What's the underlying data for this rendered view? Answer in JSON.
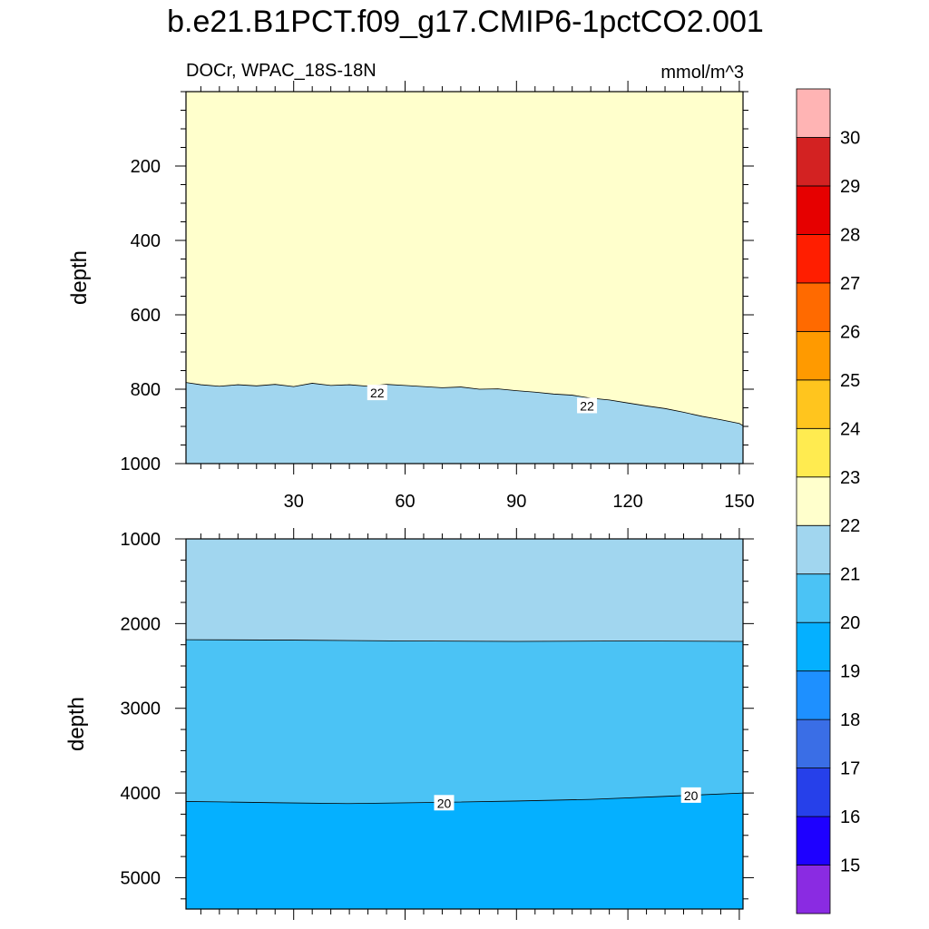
{
  "title": "b.e21.B1PCT.f09_g17.CMIP6-1pctCO2.001",
  "chart_data": {
    "type": "contour",
    "variable": "DOCr, WPAC_18S-18N",
    "units": "mmol/m^3",
    "x": {
      "range": [
        1,
        151
      ],
      "ticks": [
        30,
        60,
        90,
        120,
        150
      ],
      "ticklabels": [
        "30",
        "60",
        "90",
        "120",
        "150"
      ]
    },
    "colorbar": {
      "levels": [
        15,
        16,
        17,
        18,
        19,
        20,
        21,
        22,
        23,
        24,
        25,
        26,
        27,
        28,
        29,
        30
      ],
      "level_labels": [
        "15",
        "16",
        "17",
        "18",
        "19",
        "20",
        "21",
        "22",
        "23",
        "24",
        "25",
        "26",
        "27",
        "28",
        "29",
        "30"
      ],
      "colors": [
        "#8a2be2",
        "#1e00ff",
        "#2640ea",
        "#3a6ee6",
        "#1e90ff",
        "#05b0ff",
        "#4bc3f5",
        "#a1d6ef",
        "#ffffcc",
        "#ffeb50",
        "#ffc51e",
        "#ff9a00",
        "#ff6a00",
        "#ff1e00",
        "#e60000",
        "#d32222",
        "#ffb4b4"
      ]
    },
    "panels": [
      {
        "name": "upper",
        "ylabel": "depth",
        "ylim": [
          1000,
          0
        ],
        "yticks": [
          200,
          400,
          600,
          800,
          1000
        ],
        "yticklabels": [
          "200",
          "400",
          "600",
          "800",
          "1000"
        ],
        "regions": [
          {
            "level_range": "22-23",
            "color": "#ffffcc"
          },
          {
            "level_range": "21-22",
            "color": "#a1d6ef"
          }
        ],
        "contours": [
          {
            "level": 22,
            "x": [
              1,
              5,
              10,
              15,
              20,
              25,
              30,
              35,
              40,
              45,
              50,
              55,
              60,
              65,
              70,
              75,
              80,
              85,
              90,
              95,
              100,
              105,
              110,
              115,
              120,
              125,
              130,
              135,
              140,
              145,
              150,
              151
            ],
            "depth": [
              782,
              788,
              792,
              788,
              791,
              787,
              793,
              784,
              790,
              788,
              792,
              787,
              790,
              793,
              796,
              794,
              800,
              799,
              804,
              808,
              813,
              816,
              824,
              829,
              837,
              845,
              852,
              862,
              873,
              882,
              892,
              898
            ],
            "labels": [
              {
                "text": "22",
                "x": 52.5,
                "depth": 810
              },
              {
                "text": "22",
                "x": 109,
                "depth": 845
              }
            ]
          }
        ]
      },
      {
        "name": "lower",
        "ylabel": "depth",
        "ylim": [
          5370,
          1000
        ],
        "yticks": [
          1000,
          2000,
          3000,
          4000,
          5000
        ],
        "yticklabels": [
          "1000",
          "2000",
          "3000",
          "4000",
          "5000"
        ],
        "regions": [
          {
            "level_range": "21-22",
            "color": "#a1d6ef"
          },
          {
            "level_range": "20-21",
            "color": "#4bc3f5"
          },
          {
            "level_range": "19-20",
            "color": "#05b0ff"
          }
        ],
        "contours": [
          {
            "level": 21,
            "x": [
              1,
              30,
              60,
              90,
              120,
              151
            ],
            "depth": [
              2190,
              2195,
              2205,
              2210,
              2205,
              2210
            ],
            "labels": []
          },
          {
            "level": 20,
            "x": [
              1,
              10,
              25,
              45,
              70,
              90,
              110,
              130,
              151
            ],
            "depth": [
              4100,
              4105,
              4115,
              4125,
              4110,
              4095,
              4075,
              4040,
              4000
            ],
            "labels": [
              {
                "text": "20",
                "x": 70.5,
                "depth": 4120
              },
              {
                "text": "20",
                "x": 137,
                "depth": 4030
              }
            ]
          }
        ]
      }
    ]
  }
}
